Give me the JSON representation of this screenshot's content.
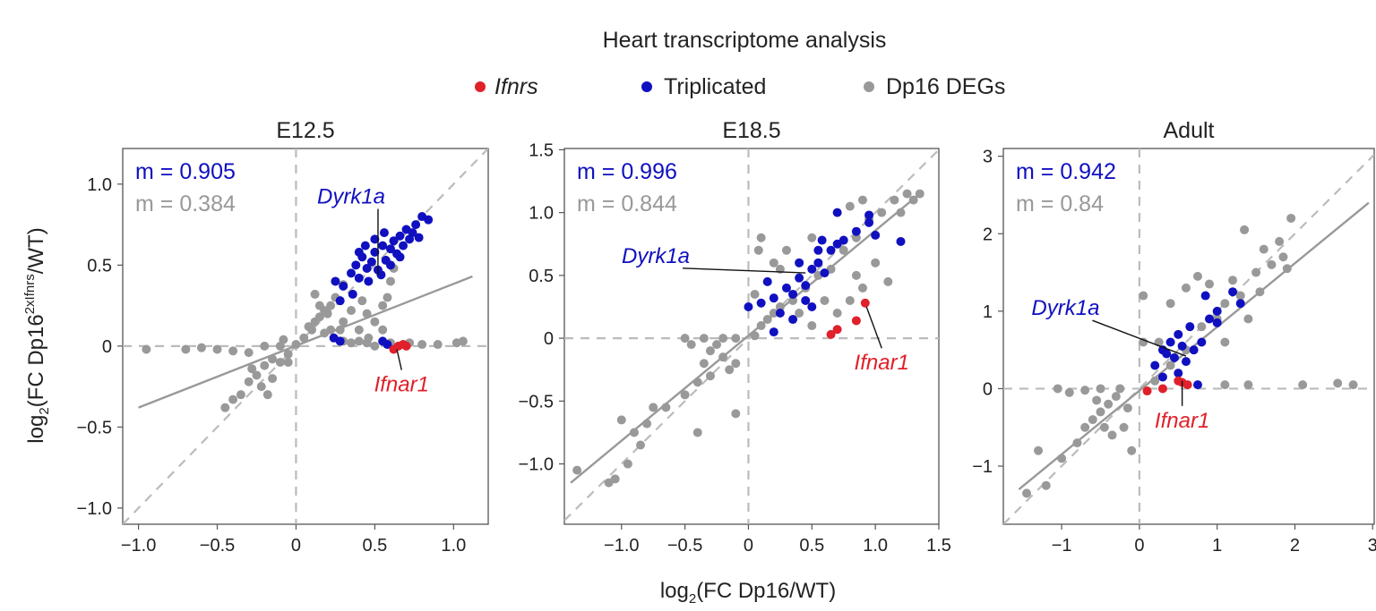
{
  "figure_title": "Heart transcriptome analysis",
  "legend": [
    {
      "label": "Ifnrs",
      "color": "#e0202a",
      "italic": true
    },
    {
      "label": "Triplicated",
      "color": "#1010c0",
      "italic": false
    },
    {
      "label": "Dp16 DEGs",
      "color": "#999999",
      "italic": false
    }
  ],
  "xlabel": "log2(FC Dp16/WT)",
  "ylabel": "log2(FC Dp16^2xIfnrs/WT)",
  "chart_data": [
    {
      "type": "scatter",
      "title": "E12.5",
      "xlim": [
        -1.1,
        1.22
      ],
      "ylim": [
        -1.1,
        1.22
      ],
      "xticks": [
        -1.0,
        -0.5,
        0,
        0.5,
        1.0
      ],
      "xtick_labels": [
        "−1.0",
        "−0.5",
        "0",
        "0.5",
        "1.0"
      ],
      "yticks": [
        -1.0,
        -0.5,
        0,
        0.5,
        1.0
      ],
      "ytick_labels": [
        "−1.0",
        "−0.5",
        "0",
        "0.5",
        "1.0"
      ],
      "m_triplicated": "m = 0.905",
      "m_degs": "m = 0.384",
      "fit_line": {
        "x": [
          -1.0,
          1.12
        ],
        "y": [
          -0.38,
          0.43
        ]
      },
      "labels": [
        {
          "text": "Dyrk1a",
          "class": "triplicated",
          "tx": 0.35,
          "ty": 0.88,
          "px": 0.52,
          "py": 0.44
        },
        {
          "text": "Ifnar1",
          "class": "ifnrs",
          "tx": 0.67,
          "ty": -0.28,
          "px": 0.64,
          "py": -0.02
        }
      ],
      "ifnrs": [
        [
          0.62,
          -0.02
        ],
        [
          0.65,
          0.0
        ],
        [
          0.68,
          0.01
        ],
        [
          0.7,
          0.0
        ]
      ],
      "triplicated": [
        [
          0.25,
          0.4
        ],
        [
          0.3,
          0.37
        ],
        [
          0.35,
          0.45
        ],
        [
          0.38,
          0.5
        ],
        [
          0.4,
          0.42
        ],
        [
          0.42,
          0.55
        ],
        [
          0.45,
          0.48
        ],
        [
          0.48,
          0.52
        ],
        [
          0.5,
          0.58
        ],
        [
          0.52,
          0.47
        ],
        [
          0.55,
          0.62
        ],
        [
          0.57,
          0.53
        ],
        [
          0.6,
          0.6
        ],
        [
          0.62,
          0.65
        ],
        [
          0.64,
          0.57
        ],
        [
          0.66,
          0.68
        ],
        [
          0.68,
          0.62
        ],
        [
          0.7,
          0.72
        ],
        [
          0.72,
          0.66
        ],
        [
          0.74,
          0.7
        ],
        [
          0.76,
          0.75
        ],
        [
          0.78,
          0.67
        ],
        [
          0.8,
          0.8
        ],
        [
          0.84,
          0.78
        ],
        [
          0.44,
          0.62
        ],
        [
          0.5,
          0.66
        ],
        [
          0.56,
          0.7
        ],
        [
          0.4,
          0.58
        ],
        [
          0.46,
          0.4
        ],
        [
          0.36,
          0.32
        ],
        [
          0.28,
          0.28
        ],
        [
          0.54,
          0.44
        ],
        [
          0.6,
          0.5
        ],
        [
          0.66,
          0.55
        ],
        [
          0.24,
          0.05
        ],
        [
          0.28,
          0.03
        ],
        [
          0.55,
          0.03
        ],
        [
          0.58,
          0.01
        ]
      ],
      "degs": [
        [
          -0.95,
          -0.02
        ],
        [
          -0.7,
          -0.02
        ],
        [
          -0.6,
          -0.01
        ],
        [
          -0.5,
          -0.02
        ],
        [
          -0.4,
          -0.03
        ],
        [
          -0.3,
          -0.04
        ],
        [
          -0.2,
          0.0
        ],
        [
          -0.1,
          0.0
        ],
        [
          0.0,
          0.01
        ],
        [
          -0.15,
          -0.08
        ],
        [
          -0.2,
          -0.12
        ],
        [
          -0.25,
          -0.18
        ],
        [
          -0.3,
          -0.22
        ],
        [
          -0.35,
          -0.3
        ],
        [
          -0.4,
          -0.33
        ],
        [
          -0.45,
          -0.38
        ],
        [
          -0.22,
          -0.25
        ],
        [
          -0.15,
          -0.2
        ],
        [
          -0.1,
          -0.1
        ],
        [
          -0.05,
          -0.05
        ],
        [
          -0.18,
          -0.3
        ],
        [
          -0.28,
          -0.14
        ],
        [
          0.05,
          0.05
        ],
        [
          0.08,
          0.12
        ],
        [
          0.1,
          0.1
        ],
        [
          0.12,
          0.15
        ],
        [
          0.15,
          0.18
        ],
        [
          0.18,
          0.22
        ],
        [
          0.2,
          0.2
        ],
        [
          0.22,
          0.25
        ],
        [
          0.25,
          0.3
        ],
        [
          0.15,
          0.25
        ],
        [
          0.18,
          0.08
        ],
        [
          0.22,
          0.1
        ],
        [
          0.3,
          0.15
        ],
        [
          0.3,
          0.03
        ],
        [
          0.35,
          0.02
        ],
        [
          0.4,
          0.03
        ],
        [
          0.45,
          0.02
        ],
        [
          0.5,
          0.0
        ],
        [
          0.6,
          0.02
        ],
        [
          0.72,
          0.02
        ],
        [
          0.8,
          0.01
        ],
        [
          0.9,
          0.01
        ],
        [
          1.02,
          0.02
        ],
        [
          1.06,
          0.03
        ],
        [
          0.4,
          0.1
        ],
        [
          0.45,
          0.2
        ],
        [
          0.35,
          0.22
        ],
        [
          0.42,
          0.28
        ],
        [
          0.55,
          0.25
        ],
        [
          0.5,
          0.15
        ],
        [
          0.58,
          0.3
        ],
        [
          0.6,
          0.4
        ],
        [
          0.3,
          0.38
        ],
        [
          0.62,
          0.48
        ],
        [
          -0.05,
          -0.1
        ],
        [
          -0.08,
          0.04
        ],
        [
          0.12,
          0.32
        ],
        [
          0.28,
          0.1
        ],
        [
          0.55,
          0.1
        ],
        [
          0.46,
          0.05
        ]
      ]
    },
    {
      "type": "scatter",
      "title": "E18.5",
      "xlim": [
        -1.45,
        1.5
      ],
      "ylim": [
        -1.48,
        1.51
      ],
      "xticks": [
        -1.0,
        -0.5,
        0,
        0.5,
        1.0,
        1.5
      ],
      "xtick_labels": [
        "−1.0",
        "−0.5",
        "0",
        "0.5",
        "1.0",
        "1.5"
      ],
      "yticks": [
        -1.0,
        -0.5,
        0,
        0.5,
        1.0,
        1.5
      ],
      "ytick_labels": [
        "−1.0",
        "−0.5",
        "0",
        "0.5",
        "1.0",
        "1.5"
      ],
      "m_triplicated": "m = 0.996",
      "m_degs": "m = 0.844",
      "fit_line": {
        "x": [
          -1.4,
          1.35
        ],
        "y": [
          -1.15,
          1.15
        ]
      },
      "labels": [
        {
          "text": "Dyrk1a",
          "class": "triplicated",
          "tx": -0.73,
          "ty": 0.6,
          "px": 0.45,
          "py": 0.52
        },
        {
          "text": "Ifnar1",
          "class": "ifnrs",
          "tx": 1.05,
          "ty": -0.25,
          "px": 0.93,
          "py": 0.25
        }
      ],
      "ifnrs": [
        [
          0.65,
          0.03
        ],
        [
          0.7,
          0.07
        ],
        [
          0.85,
          0.14
        ],
        [
          0.92,
          0.28
        ]
      ],
      "triplicated": [
        [
          0.0,
          0.25
        ],
        [
          0.1,
          0.28
        ],
        [
          0.2,
          0.32
        ],
        [
          0.3,
          0.4
        ],
        [
          0.35,
          0.35
        ],
        [
          0.4,
          0.48
        ],
        [
          0.45,
          0.42
        ],
        [
          0.5,
          0.55
        ],
        [
          0.55,
          0.6
        ],
        [
          0.6,
          0.52
        ],
        [
          0.65,
          0.7
        ],
        [
          0.7,
          0.75
        ],
        [
          0.75,
          0.78
        ],
        [
          0.85,
          0.85
        ],
        [
          0.95,
          0.92
        ],
        [
          0.95,
          0.98
        ],
        [
          1.0,
          0.82
        ],
        [
          1.2,
          0.77
        ],
        [
          0.7,
          1.0
        ],
        [
          0.15,
          0.45
        ],
        [
          0.25,
          0.2
        ],
        [
          0.35,
          0.15
        ],
        [
          0.5,
          0.25
        ],
        [
          0.45,
          0.3
        ],
        [
          0.2,
          0.05
        ],
        [
          0.4,
          0.6
        ],
        [
          0.55,
          0.7
        ],
        [
          0.58,
          0.78
        ]
      ],
      "degs": [
        [
          -1.35,
          -1.05
        ],
        [
          -1.1,
          -1.15
        ],
        [
          -1.0,
          -0.65
        ],
        [
          -0.9,
          -0.75
        ],
        [
          -0.8,
          -0.68
        ],
        [
          -0.75,
          -0.55
        ],
        [
          -0.65,
          -0.55
        ],
        [
          -0.5,
          -0.45
        ],
        [
          -0.4,
          -0.35
        ],
        [
          -0.35,
          -0.2
        ],
        [
          -0.3,
          -0.1
        ],
        [
          -0.25,
          -0.05
        ],
        [
          -0.2,
          -0.15
        ],
        [
          -0.15,
          -0.25
        ],
        [
          -0.1,
          -0.2
        ],
        [
          -0.3,
          -0.3
        ],
        [
          -0.45,
          -0.05
        ],
        [
          -0.5,
          0.0
        ],
        [
          -0.35,
          0.0
        ],
        [
          -0.2,
          0.0
        ],
        [
          -0.1,
          0.0
        ],
        [
          0.05,
          0.02
        ],
        [
          0.1,
          0.1
        ],
        [
          0.15,
          0.15
        ],
        [
          0.2,
          0.2
        ],
        [
          0.25,
          0.25
        ],
        [
          0.35,
          0.3
        ],
        [
          0.45,
          0.4
        ],
        [
          0.55,
          0.5
        ],
        [
          0.65,
          0.55
        ],
        [
          0.75,
          0.7
        ],
        [
          0.85,
          0.8
        ],
        [
          0.95,
          0.95
        ],
        [
          1.05,
          1.0
        ],
        [
          1.15,
          1.1
        ],
        [
          1.25,
          1.15
        ],
        [
          1.3,
          1.1
        ],
        [
          1.35,
          1.15
        ],
        [
          0.8,
          1.05
        ],
        [
          0.9,
          1.1
        ],
        [
          0.1,
          0.8
        ],
        [
          0.08,
          0.7
        ],
        [
          0.6,
          0.3
        ],
        [
          0.7,
          0.2
        ],
        [
          0.8,
          0.3
        ],
        [
          0.85,
          0.5
        ],
        [
          0.3,
          0.7
        ],
        [
          0.5,
          0.8
        ],
        [
          0.2,
          0.6
        ],
        [
          1.0,
          0.6
        ],
        [
          1.1,
          0.45
        ],
        [
          0.4,
          0.2
        ],
        [
          0.5,
          0.1
        ],
        [
          -0.95,
          -1.0
        ],
        [
          -0.85,
          -0.85
        ],
        [
          -1.05,
          -1.12
        ],
        [
          -0.1,
          -0.6
        ],
        [
          -0.4,
          -0.75
        ],
        [
          0.05,
          0.35
        ],
        [
          0.25,
          0.55
        ],
        [
          0.9,
          0.4
        ],
        [
          1.2,
          1.0
        ]
      ]
    },
    {
      "type": "scatter",
      "title": "Adult",
      "xlim": [
        -1.75,
        3.02
      ],
      "ylim": [
        -1.75,
        3.1
      ],
      "xticks": [
        -1,
        0,
        1,
        2,
        3
      ],
      "xtick_labels": [
        "−1",
        "0",
        "1",
        "2",
        "3"
      ],
      "yticks": [
        -1,
        0,
        1,
        2,
        3
      ],
      "ytick_labels": [
        "−1",
        "0",
        "1",
        "2",
        "3"
      ],
      "m_triplicated": "m = 0.942",
      "m_degs": "m = 0.84",
      "fit_line": {
        "x": [
          -1.55,
          2.95
        ],
        "y": [
          -1.3,
          2.4
        ]
      },
      "labels": [
        {
          "text": "Dyrk1a",
          "class": "triplicated",
          "tx": -0.95,
          "ty": 0.95,
          "px": 0.6,
          "py": 0.42
        },
        {
          "text": "Ifnar1",
          "class": "ifnrs",
          "tx": 0.55,
          "ty": -0.5,
          "px": 0.55,
          "py": 0.1
        }
      ],
      "ifnrs": [
        [
          0.1,
          -0.03
        ],
        [
          0.3,
          0.0
        ],
        [
          0.5,
          0.1
        ],
        [
          0.55,
          0.08
        ],
        [
          0.62,
          0.05
        ]
      ],
      "triplicated": [
        [
          0.2,
          0.3
        ],
        [
          0.3,
          0.5
        ],
        [
          0.35,
          0.45
        ],
        [
          0.4,
          0.6
        ],
        [
          0.45,
          0.4
        ],
        [
          0.5,
          0.7
        ],
        [
          0.55,
          0.55
        ],
        [
          0.6,
          0.35
        ],
        [
          0.65,
          0.8
        ],
        [
          0.7,
          0.5
        ],
        [
          0.8,
          0.6
        ],
        [
          0.9,
          0.9
        ],
        [
          1.0,
          1.0
        ],
        [
          1.0,
          0.85
        ],
        [
          1.2,
          1.25
        ],
        [
          1.3,
          1.1
        ],
        [
          0.5,
          0.2
        ],
        [
          0.75,
          0.05
        ],
        [
          0.85,
          1.2
        ],
        [
          0.3,
          0.15
        ]
      ],
      "degs": [
        [
          -1.45,
          -1.35
        ],
        [
          -1.2,
          -1.25
        ],
        [
          -1.0,
          -0.9
        ],
        [
          -0.8,
          -0.7
        ],
        [
          -0.7,
          -0.5
        ],
        [
          -0.6,
          -0.4
        ],
        [
          -0.5,
          -0.3
        ],
        [
          -0.4,
          -0.2
        ],
        [
          -0.3,
          -0.1
        ],
        [
          -0.25,
          0.0
        ],
        [
          -0.5,
          0.0
        ],
        [
          -0.7,
          -0.02
        ],
        [
          -0.9,
          -0.05
        ],
        [
          -1.05,
          0.0
        ],
        [
          -0.2,
          -0.5
        ],
        [
          -0.35,
          -0.6
        ],
        [
          -0.15,
          -0.25
        ],
        [
          -0.1,
          -0.8
        ],
        [
          -1.3,
          -0.8
        ],
        [
          0.2,
          0.1
        ],
        [
          0.4,
          0.3
        ],
        [
          0.6,
          0.5
        ],
        [
          0.8,
          0.8
        ],
        [
          1.0,
          0.9
        ],
        [
          1.1,
          1.1
        ],
        [
          1.2,
          1.4
        ],
        [
          1.3,
          1.2
        ],
        [
          1.5,
          1.5
        ],
        [
          1.6,
          1.8
        ],
        [
          1.7,
          1.6
        ],
        [
          1.8,
          1.9
        ],
        [
          1.85,
          1.7
        ],
        [
          1.95,
          2.2
        ],
        [
          1.9,
          1.55
        ],
        [
          1.35,
          2.05
        ],
        [
          0.75,
          1.45
        ],
        [
          0.9,
          1.35
        ],
        [
          0.05,
          1.2
        ],
        [
          0.05,
          0.6
        ],
        [
          1.1,
          0.05
        ],
        [
          1.4,
          0.05
        ],
        [
          2.1,
          0.05
        ],
        [
          2.55,
          0.07
        ],
        [
          2.75,
          0.05
        ],
        [
          0.4,
          1.1
        ],
        [
          0.6,
          1.3
        ],
        [
          1.1,
          0.6
        ],
        [
          1.4,
          0.9
        ],
        [
          -0.55,
          -0.15
        ],
        [
          -0.45,
          -0.5
        ],
        [
          0.25,
          0.6
        ],
        [
          1.55,
          1.25
        ]
      ]
    }
  ]
}
